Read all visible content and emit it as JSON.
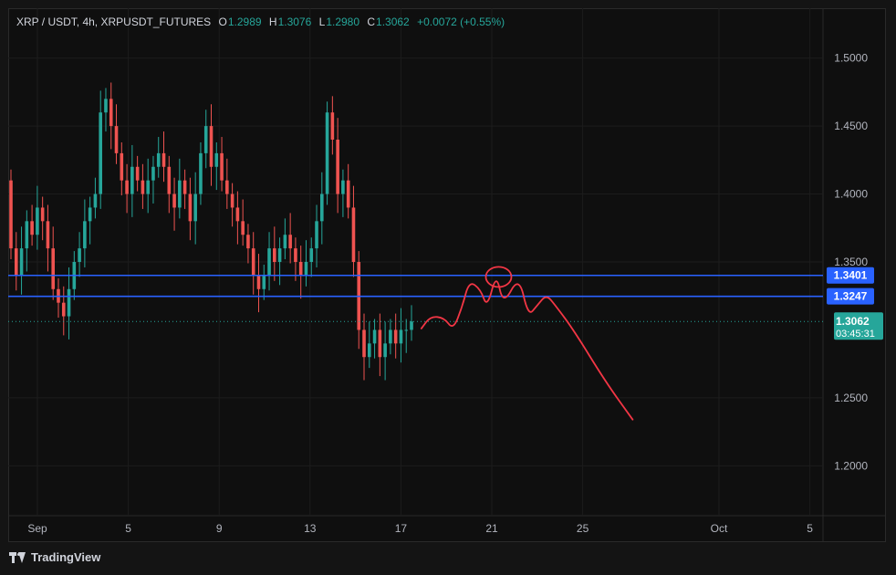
{
  "header": {
    "symbol": "XRP / USDT, 4h, XRPUSDT_FUTURES",
    "o_label": "O",
    "o_value": "1.2989",
    "h_label": "H",
    "h_value": "1.3076",
    "l_label": "L",
    "l_value": "1.2980",
    "c_label": "C",
    "c_value": "1.3062",
    "change": "+0.0072 (+0.55%)"
  },
  "footer": {
    "brand": "TradingView"
  },
  "colors": {
    "up": "#26a69a",
    "down": "#ef5350",
    "level_line": "#2962ff",
    "level_tag": "#2962ff",
    "price_tag": "#26a69a",
    "drawing": "#f23645",
    "axis_text": "#b2b5be",
    "grid": "#1c1c1c"
  },
  "chart_data": {
    "type": "candlestick",
    "title": "XRP / USDT, 4h, XRPUSDT_FUTURES",
    "x_ticks": [
      "Sep",
      "5",
      "9",
      "13",
      "17",
      "21",
      "25",
      "Oct",
      "5"
    ],
    "y_ticks": [
      "1.5000",
      "1.4500",
      "1.4000",
      "1.3500",
      "1.2500",
      "1.2000"
    ],
    "y_range": [
      1.17,
      1.53
    ],
    "x_range_days": [
      "Aug 31",
      "Oct 6"
    ],
    "levels": [
      {
        "label": "1.3401",
        "value": 1.3401
      },
      {
        "label": "1.3247",
        "value": 1.3247
      }
    ],
    "current_price": {
      "label": "1.3062",
      "value": 1.3062,
      "countdown": "03:45:31"
    },
    "candles_approx": {
      "note": "4h XRP/USDT candles Sep 1 - Sep 18, estimated",
      "opens": [
        1.41,
        1.36,
        1.34,
        1.36,
        1.38,
        1.37,
        1.39,
        1.38,
        1.36,
        1.33,
        1.32,
        1.31,
        1.33,
        1.35,
        1.36,
        1.38,
        1.39,
        1.4,
        1.46,
        1.47,
        1.45,
        1.43,
        1.41,
        1.4,
        1.42,
        1.41,
        1.4,
        1.41,
        1.42,
        1.43,
        1.42,
        1.4,
        1.39,
        1.41,
        1.4,
        1.38,
        1.4,
        1.43,
        1.45,
        1.42,
        1.43,
        1.41,
        1.4,
        1.39,
        1.38,
        1.37,
        1.36,
        1.34,
        1.33,
        1.34,
        1.36,
        1.35,
        1.36,
        1.37,
        1.36,
        1.35,
        1.34,
        1.35,
        1.36,
        1.38,
        1.4,
        1.46,
        1.44,
        1.4,
        1.41,
        1.39,
        1.35,
        1.3,
        1.28,
        1.29,
        1.3,
        1.28,
        1.29,
        1.3,
        1.29,
        1.3,
        1.3
      ],
      "closes": [
        1.36,
        1.34,
        1.36,
        1.38,
        1.37,
        1.39,
        1.38,
        1.36,
        1.33,
        1.32,
        1.31,
        1.33,
        1.35,
        1.36,
        1.38,
        1.39,
        1.4,
        1.46,
        1.47,
        1.45,
        1.43,
        1.41,
        1.4,
        1.42,
        1.41,
        1.4,
        1.41,
        1.42,
        1.43,
        1.42,
        1.4,
        1.39,
        1.41,
        1.4,
        1.38,
        1.4,
        1.43,
        1.45,
        1.42,
        1.43,
        1.41,
        1.4,
        1.39,
        1.38,
        1.37,
        1.36,
        1.34,
        1.33,
        1.34,
        1.36,
        1.35,
        1.36,
        1.37,
        1.36,
        1.35,
        1.34,
        1.35,
        1.36,
        1.38,
        1.4,
        1.46,
        1.44,
        1.4,
        1.41,
        1.39,
        1.35,
        1.3,
        1.28,
        1.29,
        1.3,
        1.28,
        1.29,
        1.3,
        1.29,
        1.3,
        1.3,
        1.3062
      ]
    }
  },
  "drawing": {
    "type": "projection-path",
    "points": [
      [
        17.9,
        1.301
      ],
      [
        18.3,
        1.31
      ],
      [
        18.9,
        1.309
      ],
      [
        19.3,
        1.3
      ],
      [
        19.7,
        1.317
      ],
      [
        20.0,
        1.336
      ],
      [
        20.5,
        1.33
      ],
      [
        20.8,
        1.316
      ],
      [
        21.2,
        1.342
      ],
      [
        21.5,
        1.318
      ],
      [
        22.2,
        1.34
      ],
      [
        22.6,
        1.31
      ],
      [
        23.0,
        1.318
      ],
      [
        23.4,
        1.326
      ],
      [
        23.8,
        1.318
      ],
      [
        24.6,
        1.3
      ],
      [
        26.0,
        1.262
      ],
      [
        27.2,
        1.234
      ]
    ],
    "circle_center": [
      21.3,
      1.339
    ]
  }
}
